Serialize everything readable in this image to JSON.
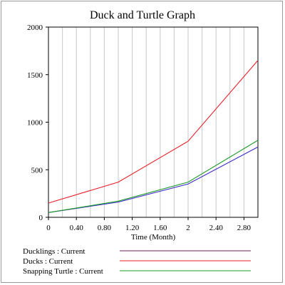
{
  "chart_data": {
    "type": "line",
    "title": "Duck and Turtle Graph",
    "xlabel": "Time (Month)",
    "ylabel": "",
    "xlim": [
      0,
      3
    ],
    "ylim": [
      0,
      2000
    ],
    "x_ticks": [
      0,
      0.4,
      0.8,
      1.2,
      1.6,
      2,
      2.4,
      2.8
    ],
    "x_tick_labels": [
      "0",
      "0.40",
      "0.80",
      "1.20",
      "1.60",
      "2",
      "2.40",
      "2.80"
    ],
    "y_ticks": [
      0,
      500,
      1000,
      1500,
      2000
    ],
    "y_tick_labels": [
      "0",
      "500",
      "1000",
      "1500",
      "2000"
    ],
    "grid": true,
    "legend_position": "bottom",
    "series": [
      {
        "name": "Ducklings : Current",
        "color": "#7a1e5e",
        "x": [
          0,
          1,
          2,
          3
        ],
        "values": [
          50,
          160,
          350,
          740
        ]
      },
      {
        "name": "Ducks : Current",
        "color": "#e8202a",
        "x": [
          0,
          1,
          2,
          3
        ],
        "values": [
          150,
          370,
          800,
          1650
        ]
      },
      {
        "name": "Snapping Turtle : Current",
        "color": "#1f9a2a",
        "x": [
          0,
          1,
          2,
          3
        ],
        "values": [
          50,
          170,
          370,
          810
        ]
      }
    ],
    "series_line_colors": {
      "Ducklings : Current": "#3c2cc8",
      "Ducks : Current": "#e8202a",
      "Snapping Turtle : Current": "#1f9a2a"
    }
  }
}
